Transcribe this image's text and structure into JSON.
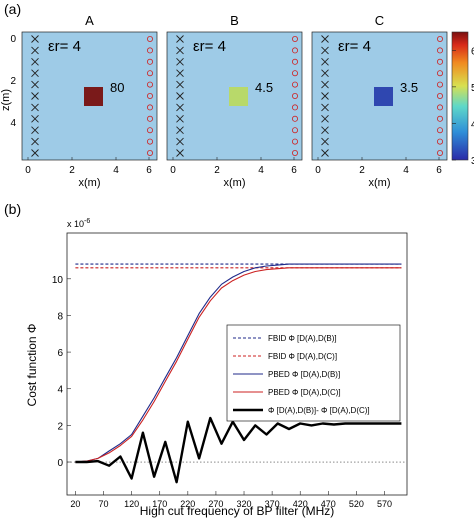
{
  "panel_a": {
    "label": "(a)",
    "y_axis_label": "z(m)",
    "x_axis_label": "x(m)",
    "x_ticks": [
      "0",
      "2",
      "4",
      "6"
    ],
    "y_ticks": [
      "0",
      "2",
      "4"
    ],
    "background_color": "#9ecbe7",
    "colorbar": {
      "ticks": [
        "6",
        "5",
        "4",
        "3"
      ],
      "min": 3,
      "max": 6.5
    },
    "subplots": [
      {
        "title": "A",
        "eps_label": "εr= 4",
        "value_label": "80",
        "box_color": "#7a1a1a"
      },
      {
        "title": "B",
        "eps_label": "εr= 4",
        "value_label": "4.5",
        "box_color": "#b8d96a"
      },
      {
        "title": "C",
        "eps_label": "εr= 4",
        "value_label": "3.5",
        "box_color": "#2f47b0"
      }
    ]
  },
  "chart_data": {
    "type": "line",
    "label": "(b)",
    "title": "",
    "xlabel": "High cut frequency of BP filter (MHz)",
    "ylabel": "Cost function Φ",
    "exponent_label": "x 10",
    "exponent_power": "-6",
    "xlim": [
      5,
      610
    ],
    "ylim": [
      -1.8,
      12.5
    ],
    "x_tick_labels": [
      "20",
      "70",
      "120",
      "170",
      "220",
      "270",
      "320",
      "370",
      "420",
      "470",
      "520",
      "570"
    ],
    "y_tick_labels": [
      "0",
      "2",
      "4",
      "6",
      "8",
      "10"
    ],
    "x": [
      20,
      40,
      60,
      80,
      100,
      120,
      140,
      160,
      180,
      200,
      220,
      240,
      260,
      280,
      300,
      320,
      340,
      360,
      380,
      400,
      420,
      440,
      460,
      480,
      500,
      520,
      540,
      560,
      580,
      600
    ],
    "series": [
      {
        "name": "FBID Φ [D(A),D(B)]",
        "style": "dashed",
        "color": "#1f2a8a",
        "values": [
          10.8,
          10.8,
          10.8,
          10.8,
          10.8,
          10.8,
          10.8,
          10.8,
          10.8,
          10.8,
          10.8,
          10.8,
          10.8,
          10.8,
          10.8,
          10.8,
          10.8,
          10.8,
          10.8,
          10.8,
          10.8,
          10.8,
          10.8,
          10.8,
          10.8,
          10.8,
          10.8,
          10.8,
          10.8,
          10.8
        ]
      },
      {
        "name": "FBID Φ [D(A),D(C)]",
        "style": "dashed",
        "color": "#cc2222",
        "values": [
          10.6,
          10.6,
          10.6,
          10.6,
          10.6,
          10.6,
          10.6,
          10.6,
          10.6,
          10.6,
          10.6,
          10.6,
          10.6,
          10.6,
          10.6,
          10.6,
          10.6,
          10.6,
          10.6,
          10.6,
          10.6,
          10.6,
          10.6,
          10.6,
          10.6,
          10.6,
          10.6,
          10.6,
          10.6,
          10.6
        ]
      },
      {
        "name": "PBED Φ [D(A),D(B)]",
        "style": "solid",
        "color": "#1f2a8a",
        "values": [
          0,
          0.05,
          0.2,
          0.6,
          1.0,
          1.5,
          2.5,
          3.5,
          4.6,
          5.7,
          6.9,
          8.1,
          9.0,
          9.7,
          10.1,
          10.4,
          10.6,
          10.7,
          10.75,
          10.8,
          10.8,
          10.8,
          10.8,
          10.8,
          10.8,
          10.8,
          10.8,
          10.8,
          10.8,
          10.8
        ]
      },
      {
        "name": "PBED Φ [D(A),D(C)]",
        "style": "solid",
        "color": "#cc2222",
        "values": [
          0,
          0.05,
          0.2,
          0.5,
          0.9,
          1.4,
          2.3,
          3.3,
          4.4,
          5.5,
          6.7,
          7.9,
          8.8,
          9.5,
          9.9,
          10.2,
          10.4,
          10.5,
          10.55,
          10.6,
          10.6,
          10.6,
          10.6,
          10.6,
          10.6,
          10.6,
          10.6,
          10.6,
          10.6,
          10.6
        ]
      },
      {
        "name": "Φ [D(A),D(B)]- Φ [D(A),D(C)]",
        "style": "thick",
        "color": "#000000",
        "values": [
          0,
          0,
          0.05,
          -0.2,
          0.3,
          -0.9,
          1.6,
          -0.8,
          1.1,
          -1.1,
          2.2,
          0.2,
          2.4,
          1.0,
          2.2,
          1.2,
          2.0,
          1.5,
          2.1,
          1.8,
          2.1,
          2.0,
          2.1,
          2.05,
          2.1,
          2.1,
          2.1,
          2.1,
          2.1,
          2.1
        ]
      }
    ],
    "legend_position": "center-right"
  }
}
